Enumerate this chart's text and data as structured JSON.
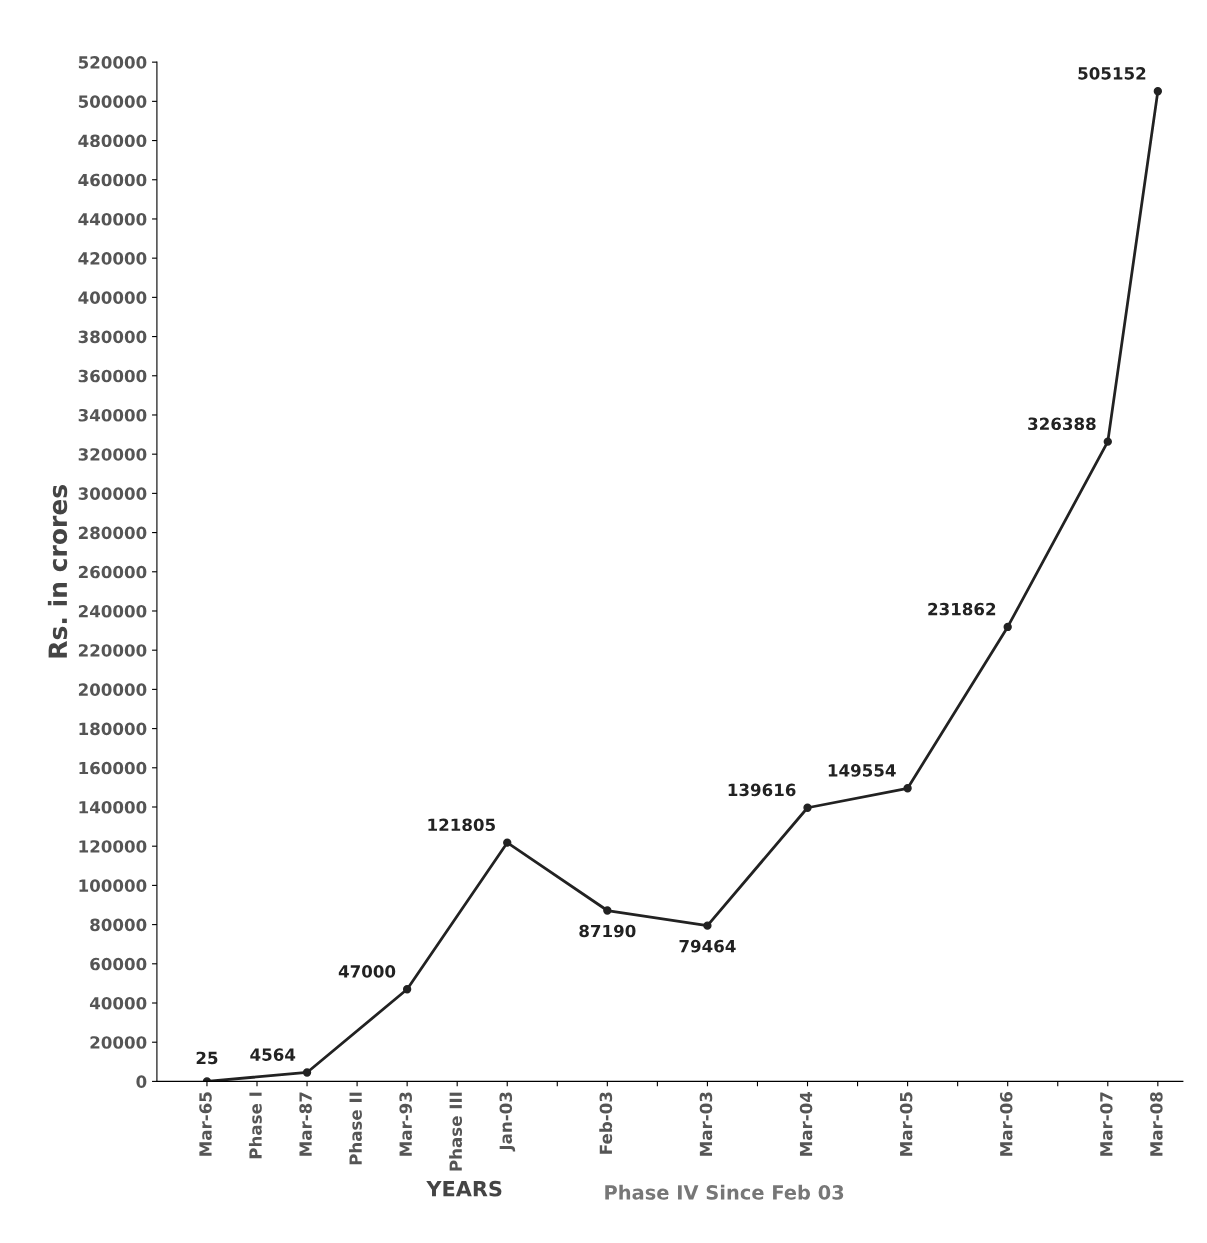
{
  "chart_data": {
    "type": "line",
    "xlabel": "YEARS",
    "ylabel": "Rs. in crores",
    "categories": [
      "Mar-65",
      "Phase I",
      "Mar-87",
      "Phase II",
      "Mar-93",
      "Phase III",
      "Jan-03",
      null,
      "Feb-03",
      null,
      "Mar-03",
      null,
      "Mar-04",
      null,
      "Mar-05",
      null,
      "Mar-06",
      null,
      "Mar-07",
      "Mar-08"
    ],
    "series": [
      {
        "color": "#222222",
        "values": [
          25,
          null,
          4564,
          null,
          47000,
          null,
          121805,
          null,
          87190,
          null,
          79464,
          null,
          139616,
          null,
          149554,
          null,
          231862,
          null,
          326388,
          505152
        ]
      }
    ],
    "ylim": [
      0,
      520000
    ],
    "yticks": [
      0,
      20000,
      40000,
      60000,
      80000,
      100000,
      120000,
      140000,
      160000,
      180000,
      200000,
      220000,
      240000,
      260000,
      280000,
      300000,
      320000,
      340000,
      360000,
      380000,
      400000,
      420000,
      440000,
      460000,
      480000,
      500000,
      520000
    ],
    "data_labels": true,
    "marker": "circle",
    "line_style": "solid",
    "grid": false,
    "annotations": [
      "Phase IV Since Feb 03"
    ]
  }
}
